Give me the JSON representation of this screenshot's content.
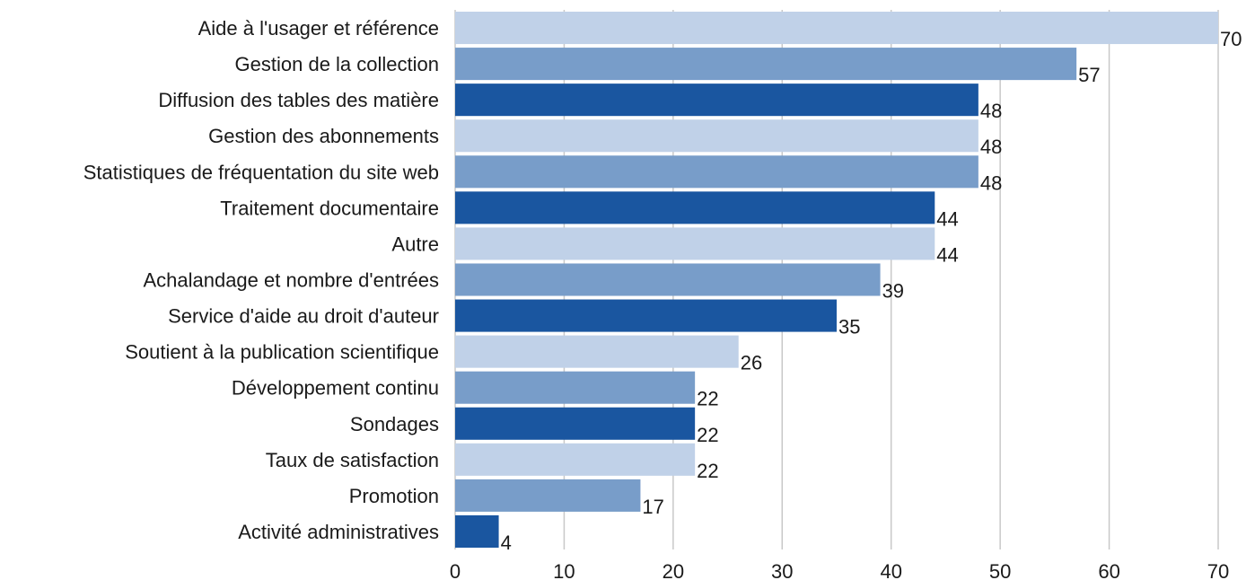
{
  "chart_data": {
    "type": "bar",
    "orientation": "horizontal",
    "categories": [
      "Aide à l'usager et référence",
      "Gestion de la collection",
      "Diffusion des tables des matière",
      "Gestion des abonnements",
      "Statistiques de fréquentation du site web",
      "Traitement documentaire",
      "Autre",
      "Achalandage et nombre d'entrées",
      "Service d'aide au droit d'auteur",
      "Soutient à la publication scientifique",
      "Développement continu",
      "Sondages",
      "Taux de satisfaction",
      "Promotion",
      "Activité administratives"
    ],
    "values": [
      70,
      57,
      48,
      48,
      48,
      44,
      44,
      39,
      35,
      26,
      22,
      22,
      22,
      17,
      4
    ],
    "bar_colors": [
      "#c0d1e8",
      "#789dc9",
      "#1a56a0"
    ],
    "data_labels": [
      "70",
      "57",
      "48",
      "48",
      "48",
      "44",
      "44",
      "39",
      "35",
      "26",
      "22",
      "22",
      "22",
      "17",
      "4"
    ],
    "xlim": [
      0,
      70
    ],
    "xticks": [
      0,
      10,
      20,
      30,
      40,
      50,
      60,
      70
    ],
    "xtick_labels": [
      "0",
      "10",
      "20",
      "30",
      "40",
      "50",
      "60",
      "70"
    ],
    "grid": true,
    "legend": "none"
  }
}
